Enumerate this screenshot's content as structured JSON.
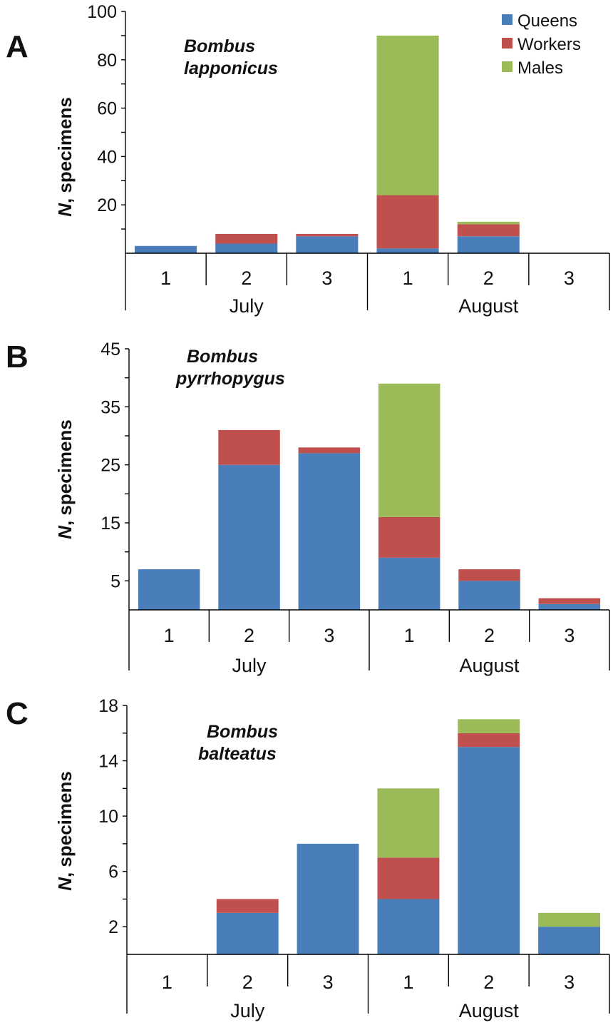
{
  "legend": [
    {
      "name": "Queens",
      "color": "#4a7ebb"
    },
    {
      "name": "Workers",
      "color": "#c0504d"
    },
    {
      "name": "Males",
      "color": "#9bbb59"
    }
  ],
  "chart_data": [
    {
      "type": "bar",
      "stacked": true,
      "panel": "A",
      "annotation": [
        "Bombus",
        "lapponicus"
      ],
      "ylabel_italic": "N",
      "ylabel_rest": ", specimens",
      "ylim": [
        0,
        100
      ],
      "yticks": [
        20,
        40,
        60,
        80,
        100
      ],
      "categories": [
        "1",
        "2",
        "3",
        "1",
        "2",
        "3"
      ],
      "groups": [
        {
          "label": "July",
          "span": 3
        },
        {
          "label": "August",
          "span": 3
        }
      ],
      "series": [
        {
          "name": "Queens",
          "values": [
            3,
            4,
            7,
            2,
            7,
            0
          ]
        },
        {
          "name": "Workers",
          "values": [
            0,
            4,
            1,
            22,
            5,
            0
          ]
        },
        {
          "name": "Males",
          "values": [
            0,
            0,
            0,
            66,
            1,
            0
          ]
        }
      ],
      "legend_position": "top-right"
    },
    {
      "type": "bar",
      "stacked": true,
      "panel": "B",
      "annotation": [
        "Bombus",
        "pyrrhopygus"
      ],
      "ylabel_italic": "N",
      "ylabel_rest": ", specimens",
      "ylim": [
        0,
        45
      ],
      "yticks": [
        5,
        15,
        25,
        35,
        45
      ],
      "categories": [
        "1",
        "2",
        "3",
        "1",
        "2",
        "3"
      ],
      "groups": [
        {
          "label": "July",
          "span": 3
        },
        {
          "label": "August",
          "span": 3
        }
      ],
      "series": [
        {
          "name": "Queens",
          "values": [
            7,
            25,
            27,
            9,
            5,
            1
          ]
        },
        {
          "name": "Workers",
          "values": [
            0,
            6,
            1,
            7,
            2,
            1
          ]
        },
        {
          "name": "Males",
          "values": [
            0,
            0,
            0,
            23,
            0,
            0
          ]
        }
      ]
    },
    {
      "type": "bar",
      "stacked": true,
      "panel": "C",
      "annotation": [
        "Bombus",
        "balteatus"
      ],
      "ylabel_italic": "N",
      "ylabel_rest": ", specimens",
      "ylim": [
        0,
        18
      ],
      "yticks": [
        2,
        6,
        10,
        14,
        18
      ],
      "categories": [
        "1",
        "2",
        "3",
        "1",
        "2",
        "3"
      ],
      "groups": [
        {
          "label": "July",
          "span": 3
        },
        {
          "label": "August",
          "span": 3
        }
      ],
      "series": [
        {
          "name": "Queens",
          "values": [
            0,
            3,
            8,
            4,
            15,
            2
          ]
        },
        {
          "name": "Workers",
          "values": [
            0,
            1,
            0,
            3,
            1,
            0
          ]
        },
        {
          "name": "Males",
          "values": [
            0,
            0,
            0,
            5,
            1,
            1
          ]
        }
      ]
    }
  ]
}
